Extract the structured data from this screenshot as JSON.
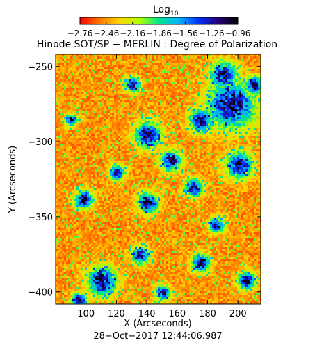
{
  "chart_data": {
    "type": "heatmap",
    "title": "Hinode SOT/SP − MERLIN : Degree of Polarization",
    "xlabel": "X (Arcseconds)",
    "ylabel": "Y (Arcseconds)",
    "timestamp": "28−Oct−2017 12:44:06.987",
    "xlim": [
      80,
      215
    ],
    "ylim": [
      -408,
      -242
    ],
    "x_ticks": [
      {
        "value": 100,
        "label": "100"
      },
      {
        "value": 120,
        "label": "120"
      },
      {
        "value": 140,
        "label": "140"
      },
      {
        "value": 160,
        "label": "160"
      },
      {
        "value": 180,
        "label": "180"
      },
      {
        "value": 200,
        "label": "200"
      }
    ],
    "y_ticks": [
      {
        "value": -250,
        "label": "−250"
      },
      {
        "value": -300,
        "label": "−300"
      },
      {
        "value": -350,
        "label": "−350"
      },
      {
        "value": -400,
        "label": "−400"
      }
    ],
    "colorbar": {
      "label": "Log",
      "label_subscript": "10",
      "range": [
        -2.76,
        -0.96
      ],
      "colormap": [
        "#ff0000",
        "#ff7a00",
        "#ffd400",
        "#b4ff00",
        "#00e68c",
        "#00b4ff",
        "#0033ff",
        "#24007a",
        "#000000"
      ],
      "ticks": [
        {
          "value": -2.76,
          "label": "−2.76"
        },
        {
          "value": -2.46,
          "label": "−2.46"
        },
        {
          "value": -2.16,
          "label": "−2.16"
        },
        {
          "value": -1.86,
          "label": "−1.86"
        },
        {
          "value": -1.56,
          "label": "−1.56"
        },
        {
          "value": -1.26,
          "label": "−1.26"
        },
        {
          "value": -0.96,
          "label": "−0.96"
        }
      ]
    },
    "grid": false,
    "polarization_regions": [
      {
        "x": 195,
        "y": -275,
        "r": 16
      },
      {
        "x": 190,
        "y": -255,
        "r": 9
      },
      {
        "x": 175,
        "y": -285,
        "r": 8
      },
      {
        "x": 140,
        "y": -295,
        "r": 9
      },
      {
        "x": 155,
        "y": -312,
        "r": 7
      },
      {
        "x": 200,
        "y": -315,
        "r": 9
      },
      {
        "x": 130,
        "y": -262,
        "r": 5
      },
      {
        "x": 98,
        "y": -338,
        "r": 6
      },
      {
        "x": 120,
        "y": -320,
        "r": 5
      },
      {
        "x": 140,
        "y": -340,
        "r": 7
      },
      {
        "x": 170,
        "y": -330,
        "r": 6
      },
      {
        "x": 185,
        "y": -355,
        "r": 5
      },
      {
        "x": 135,
        "y": -375,
        "r": 6
      },
      {
        "x": 110,
        "y": -392,
        "r": 10
      },
      {
        "x": 175,
        "y": -380,
        "r": 6
      },
      {
        "x": 205,
        "y": -392,
        "r": 6
      },
      {
        "x": 150,
        "y": -400,
        "r": 5
      },
      {
        "x": 95,
        "y": -405,
        "r": 5
      },
      {
        "x": 210,
        "y": -262,
        "r": 6
      },
      {
        "x": 90,
        "y": -285,
        "r": 4
      }
    ]
  }
}
